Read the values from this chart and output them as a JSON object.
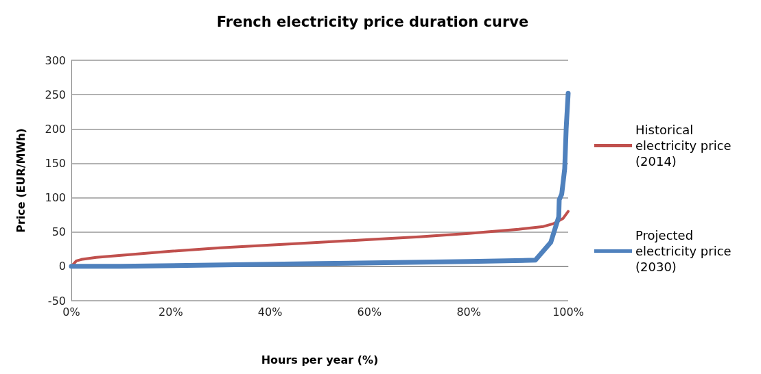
{
  "chart_data": {
    "type": "line",
    "title": "French electricity price duration curve",
    "xlabel": "Hours per year (%)",
    "ylabel": "Price (EUR/MWh)",
    "xlim": [
      0,
      100
    ],
    "xticks": [
      {
        "value": 0,
        "label": "0%"
      },
      {
        "value": 20,
        "label": "20%"
      },
      {
        "value": 40,
        "label": "40%"
      },
      {
        "value": 60,
        "label": "60%"
      },
      {
        "value": 80,
        "label": "80%"
      },
      {
        "value": 100,
        "label": "100%"
      }
    ],
    "ylim": [
      -50,
      300
    ],
    "yticks": [
      -50,
      0,
      50,
      100,
      150,
      200,
      250,
      300
    ],
    "grid": "y",
    "legend": "right",
    "marker": "none",
    "line_style": "solid",
    "series": [
      {
        "name": "Historical electricity price (2014)",
        "color": "#c0504d",
        "x": [
          0,
          1,
          2,
          5,
          10,
          20,
          30,
          40,
          50,
          60,
          70,
          80,
          90,
          95,
          97,
          99,
          100
        ],
        "values": [
          0,
          8,
          10,
          13,
          16,
          22,
          27,
          31,
          35,
          39,
          43,
          48,
          54,
          58,
          62,
          70,
          80
        ]
      },
      {
        "name": "Projected electricity price (2030)",
        "color": "#4f81bd",
        "x": [
          0,
          10,
          50,
          80,
          93.4,
          96.5,
          98.1,
          98.2,
          98.7,
          99.3,
          99.6,
          99.7,
          100
        ],
        "values": [
          0,
          0,
          4,
          7,
          9,
          35,
          72,
          97,
          105,
          142,
          201,
          214,
          252
        ]
      }
    ]
  }
}
